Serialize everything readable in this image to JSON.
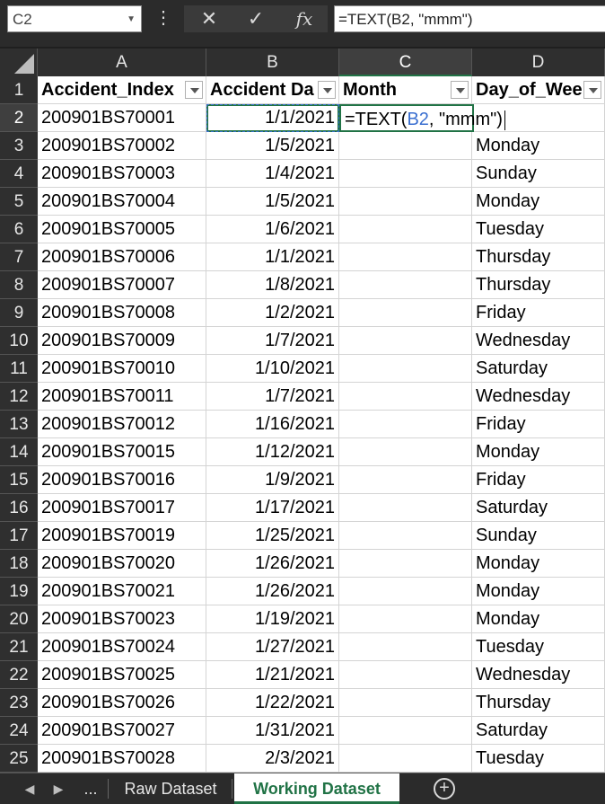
{
  "formula_bar": {
    "name_box": "C2",
    "vdots": "⋮",
    "cancel_icon": "✕",
    "enter_icon": "✓",
    "fx_icon": "fx",
    "formula": "=TEXT(B2, \"mmm\")"
  },
  "columns": [
    "A",
    "B",
    "C",
    "D"
  ],
  "headers": {
    "a": "Accident_Index",
    "b": "Accident Da",
    "c": "Month",
    "d": "Day_of_Wee"
  },
  "edit_cell": {
    "prefix": "=TEXT(",
    "ref": "B2",
    "suffix": ", \"mmm\")"
  },
  "rows": [
    {
      "n": "2",
      "a": "200901BS70001",
      "b": "1/1/2021",
      "d": ""
    },
    {
      "n": "3",
      "a": "200901BS70002",
      "b": "1/5/2021",
      "d": "Monday"
    },
    {
      "n": "4",
      "a": "200901BS70003",
      "b": "1/4/2021",
      "d": "Sunday"
    },
    {
      "n": "5",
      "a": "200901BS70004",
      "b": "1/5/2021",
      "d": "Monday"
    },
    {
      "n": "6",
      "a": "200901BS70005",
      "b": "1/6/2021",
      "d": "Tuesday"
    },
    {
      "n": "7",
      "a": "200901BS70006",
      "b": "1/1/2021",
      "d": "Thursday"
    },
    {
      "n": "8",
      "a": "200901BS70007",
      "b": "1/8/2021",
      "d": "Thursday"
    },
    {
      "n": "9",
      "a": "200901BS70008",
      "b": "1/2/2021",
      "d": "Friday"
    },
    {
      "n": "10",
      "a": "200901BS70009",
      "b": "1/7/2021",
      "d": "Wednesday"
    },
    {
      "n": "11",
      "a": "200901BS70010",
      "b": "1/10/2021",
      "d": "Saturday"
    },
    {
      "n": "12",
      "a": "200901BS70011",
      "b": "1/7/2021",
      "d": "Wednesday"
    },
    {
      "n": "13",
      "a": "200901BS70012",
      "b": "1/16/2021",
      "d": "Friday"
    },
    {
      "n": "14",
      "a": "200901BS70015",
      "b": "1/12/2021",
      "d": "Monday"
    },
    {
      "n": "15",
      "a": "200901BS70016",
      "b": "1/9/2021",
      "d": "Friday"
    },
    {
      "n": "16",
      "a": "200901BS70017",
      "b": "1/17/2021",
      "d": "Saturday"
    },
    {
      "n": "17",
      "a": "200901BS70019",
      "b": "1/25/2021",
      "d": "Sunday"
    },
    {
      "n": "18",
      "a": "200901BS70020",
      "b": "1/26/2021",
      "d": "Monday"
    },
    {
      "n": "19",
      "a": "200901BS70021",
      "b": "1/26/2021",
      "d": "Monday"
    },
    {
      "n": "20",
      "a": "200901BS70023",
      "b": "1/19/2021",
      "d": "Monday"
    },
    {
      "n": "21",
      "a": "200901BS70024",
      "b": "1/27/2021",
      "d": "Tuesday"
    },
    {
      "n": "22",
      "a": "200901BS70025",
      "b": "1/21/2021",
      "d": "Wednesday"
    },
    {
      "n": "23",
      "a": "200901BS70026",
      "b": "1/22/2021",
      "d": "Thursday"
    },
    {
      "n": "24",
      "a": "200901BS70027",
      "b": "1/31/2021",
      "d": "Saturday"
    },
    {
      "n": "25",
      "a": "200901BS70028",
      "b": "2/3/2021",
      "d": "Tuesday"
    }
  ],
  "sheet_tabs": {
    "prev": "◀",
    "next": "▶",
    "more": "...",
    "tabs": [
      "Raw Dataset",
      "Working Dataset"
    ],
    "add": "+"
  },
  "colors": {
    "accent": "#217346",
    "ref_blue": "#3a6fd0"
  }
}
